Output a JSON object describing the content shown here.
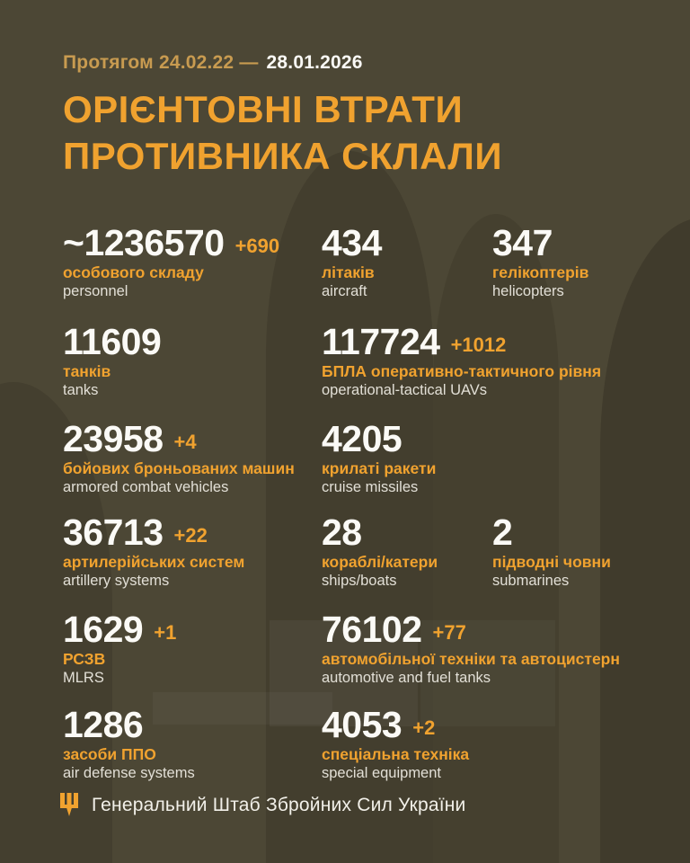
{
  "colors": {
    "background": "#4c4735",
    "accent_orange": "#f0a22f",
    "muted_gold": "#c89b50",
    "number_white": "#fbfaf6",
    "label_white": "#e2dfd6"
  },
  "header": {
    "period_prefix": "Протягом 24.02.22 —",
    "period_date": "28.01.2026",
    "title_lines": [
      "ОРІЄНТОВНІ ВТРАТИ",
      "ПРОТИВНИКА СКЛАЛИ"
    ]
  },
  "stats": [
    {
      "name": "stat-personnel",
      "value": "~1236570",
      "delta": "+690",
      "label_ua": "особового складу",
      "label_en": "personnel",
      "col": 0,
      "row": 0
    },
    {
      "name": "stat-aircraft",
      "value": "434",
      "delta": "",
      "label_ua": "літаків",
      "label_en": "aircraft",
      "col": 1,
      "row": 0
    },
    {
      "name": "stat-helicopters",
      "value": "347",
      "delta": "",
      "label_ua": "гелікоптерів",
      "label_en": "helicopters",
      "col": 2,
      "row": 0
    },
    {
      "name": "stat-tanks",
      "value": "11609",
      "delta": "",
      "label_ua": "танків",
      "label_en": "tanks",
      "col": 0,
      "row": 1
    },
    {
      "name": "stat-uavs",
      "value": "117724",
      "delta": "+1012",
      "label_ua": "БПЛА оперативно-тактичного рівня",
      "label_en": "operational-tactical UAVs",
      "col": 1,
      "row": 1
    },
    {
      "name": "stat-armored-vehicles",
      "value": "23958",
      "delta": "+4",
      "label_ua": "бойових броньованих машин",
      "label_en": "armored combat vehicles",
      "col": 0,
      "row": 2
    },
    {
      "name": "stat-cruise-missiles",
      "value": "4205",
      "delta": "",
      "label_ua": "крилаті ракети",
      "label_en": "cruise missiles",
      "col": 1,
      "row": 2
    },
    {
      "name": "stat-artillery",
      "value": "36713",
      "delta": "+22",
      "label_ua": "артилерійських систем",
      "label_en": "artillery systems",
      "col": 0,
      "row": 3
    },
    {
      "name": "stat-ships",
      "value": "28",
      "delta": "",
      "label_ua": "кораблі/катери",
      "label_en": "ships/boats",
      "col": 1,
      "row": 3
    },
    {
      "name": "stat-submarines",
      "value": "2",
      "delta": "",
      "label_ua": "підводні човни",
      "label_en": "submarines",
      "col": 2,
      "row": 3
    },
    {
      "name": "stat-mlrs",
      "value": "1629",
      "delta": "+1",
      "label_ua": "РСЗВ",
      "label_en": "MLRS",
      "col": 0,
      "row": 4
    },
    {
      "name": "stat-automotive",
      "value": "76102",
      "delta": "+77",
      "label_ua": "автомобільної техніки та автоцистерн",
      "label_en": "automotive and fuel tanks",
      "col": 1,
      "row": 4
    },
    {
      "name": "stat-air-defense",
      "value": "1286",
      "delta": "",
      "label_ua": "засоби ППО",
      "label_en": "air defense systems",
      "col": 0,
      "row": 5
    },
    {
      "name": "stat-special-equipment",
      "value": "4053",
      "delta": "+2",
      "label_ua": "спеціальна техніка",
      "label_en": "special equipment",
      "col": 1,
      "row": 5
    }
  ],
  "footer": {
    "icon": "tryzub-icon",
    "org": "Генеральний Штаб Збройних Сил України"
  }
}
